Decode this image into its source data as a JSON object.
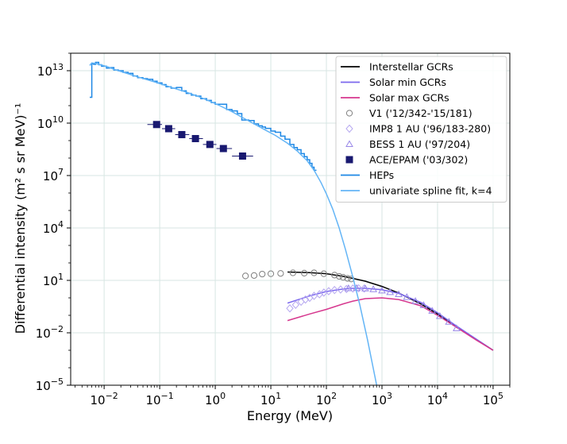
{
  "chart_data": {
    "type": "line",
    "title": "",
    "xlabel": "Energy (MeV)",
    "ylabel": "Differential intensity (m² s sr MeV)⁻¹",
    "x_scale": "log",
    "y_scale": "log",
    "xlim": [
      0.0025,
      200000
    ],
    "ylim": [
      1e-05,
      100000000000000.0
    ],
    "grid": true,
    "legend_position": "top-right",
    "x_ticks": [
      {
        "value": 0.01,
        "base": "10",
        "exp": "−2"
      },
      {
        "value": 0.1,
        "base": "10",
        "exp": "−1"
      },
      {
        "value": 1,
        "base": "10",
        "exp": "0"
      },
      {
        "value": 10,
        "base": "10",
        "exp": "1"
      },
      {
        "value": 100,
        "base": "10",
        "exp": "2"
      },
      {
        "value": 1000,
        "base": "10",
        "exp": "3"
      },
      {
        "value": 10000,
        "base": "10",
        "exp": "4"
      },
      {
        "value": 100000,
        "base": "10",
        "exp": "5"
      }
    ],
    "y_ticks": [
      {
        "value": 1e-05,
        "base": "10",
        "exp": "−5"
      },
      {
        "value": 0.01,
        "base": "10",
        "exp": "−2"
      },
      {
        "value": 10,
        "base": "10",
        "exp": "1"
      },
      {
        "value": 10000.0,
        "base": "10",
        "exp": "4"
      },
      {
        "value": 10000000.0,
        "base": "10",
        "exp": "7"
      },
      {
        "value": 10000000000.0,
        "base": "10",
        "exp": "10"
      },
      {
        "value": 10000000000000.0,
        "base": "10",
        "exp": "13"
      }
    ],
    "series": [
      {
        "name": "Interstellar GCRs",
        "kind": "line",
        "color": "#000000",
        "x": [
          20,
          50,
          100,
          200,
          300,
          500,
          1000,
          2000,
          5000,
          10000,
          20000,
          50000,
          100000
        ],
        "y": [
          30,
          28,
          24,
          17,
          13,
          9,
          4.5,
          1.9,
          0.45,
          0.12,
          0.028,
          0.0042,
          0.001
        ]
      },
      {
        "name": "Solar min GCRs",
        "kind": "line",
        "color": "#7b68ee",
        "x": [
          20,
          50,
          100,
          200,
          300,
          500,
          1000,
          2000,
          5000,
          10000,
          20000,
          50000,
          100000
        ],
        "y": [
          0.5,
          1.3,
          2.3,
          3.2,
          3.5,
          3.5,
          2.9,
          1.8,
          0.55,
          0.14,
          0.03,
          0.0043,
          0.001
        ]
      },
      {
        "name": "Solar max GCRs",
        "kind": "line",
        "color": "#d6378e",
        "x": [
          20,
          50,
          100,
          200,
          300,
          500,
          1000,
          2000,
          5000,
          10000,
          20000,
          50000,
          100000
        ],
        "y": [
          0.05,
          0.12,
          0.22,
          0.45,
          0.65,
          0.9,
          1.0,
          0.8,
          0.35,
          0.1,
          0.025,
          0.0038,
          0.001
        ]
      },
      {
        "name": "V1 ('12/342-'15/181)",
        "kind": "marker",
        "marker": "circle-open",
        "color": "#7f7f7f",
        "x": [
          3.5,
          5,
          7,
          10,
          15,
          25,
          40,
          60,
          90,
          140,
          170,
          200,
          240,
          280
        ],
        "y": [
          18,
          19,
          23,
          24,
          25,
          27,
          26,
          27,
          24,
          20,
          17,
          15,
          13,
          12
        ]
      },
      {
        "name": "IMP8 1 AU ('96/183-280)",
        "kind": "marker",
        "marker": "diamond-open",
        "color": "#b6a8f0",
        "x": [
          22,
          28,
          35,
          42,
          50,
          60,
          75,
          90,
          110,
          140,
          180,
          230,
          300,
          380,
          480
        ],
        "y": [
          0.25,
          0.4,
          0.6,
          0.8,
          1.0,
          1.3,
          1.6,
          2.0,
          2.4,
          2.8,
          3.0,
          3.2,
          3.4,
          3.5,
          3.4
        ]
      },
      {
        "name": "BESS 1 AU ('97/204)",
        "kind": "marker",
        "marker": "triangle-open",
        "color": "#9988e8",
        "x": [
          250,
          350,
          500,
          700,
          1000,
          1400,
          2000,
          2800,
          4000,
          5600,
          8000,
          11000,
          16000,
          22000
        ],
        "y": [
          3.5,
          3.6,
          3.4,
          3.1,
          2.6,
          2.1,
          1.6,
          1.1,
          0.65,
          0.38,
          0.18,
          0.09,
          0.042,
          0.018
        ]
      },
      {
        "name": "ACE/EPAM ('03/302)",
        "kind": "marker",
        "marker": "square-filled",
        "color": "#191970",
        "x": [
          0.088,
          0.145,
          0.25,
          0.44,
          0.8,
          1.4,
          3.1
        ],
        "y": [
          8300000000.0,
          4800000000.0,
          2200000000.0,
          1300000000.0,
          600000000.0,
          350000000.0,
          130000000.0
        ],
        "x_err_low": [
          0.06,
          0.11,
          0.19,
          0.34,
          0.6,
          1.05,
          2.0
        ],
        "x_err_high": [
          0.11,
          0.19,
          0.34,
          0.6,
          1.05,
          2.0,
          4.8
        ]
      },
      {
        "name": "HEPs",
        "kind": "step",
        "color": "#1e88e5",
        "x": [
          0.0055,
          0.006,
          0.0065,
          0.007,
          0.008,
          0.009,
          0.011,
          0.013,
          0.015,
          0.018,
          0.022,
          0.027,
          0.033,
          0.04,
          0.05,
          0.06,
          0.075,
          0.09,
          0.11,
          0.13,
          0.16,
          0.2,
          0.25,
          0.3,
          0.37,
          0.45,
          0.55,
          0.7,
          0.85,
          1.0,
          1.3,
          1.6,
          2.0,
          2.5,
          3.0,
          4.0,
          5.0,
          6.0,
          7.0,
          8.0,
          10,
          12,
          15,
          18,
          22,
          26,
          30,
          35,
          40,
          45,
          50,
          55,
          60
        ],
        "y": [
          300000000000.0,
          25000000000000.0,
          23000000000000.0,
          30000000000000.0,
          22000000000000.0,
          18000000000000.0,
          14000000000000.0,
          15000000000000.0,
          11000000000000.0,
          10000000000000.0,
          8000000000000.0,
          7000000000000.0,
          5000000000000.0,
          4000000000000.0,
          3500000000000.0,
          3200000000000.0,
          2500000000000.0,
          2000000000000.0,
          1600000000000.0,
          1200000000000.0,
          1000000000000.0,
          1100000000000.0,
          700000000000.0,
          500000000000.0,
          400000000000.0,
          350000000000.0,
          250000000000.0,
          200000000000.0,
          150000000000.0,
          120000000000.0,
          120000000000.0,
          60000000000.0,
          50000000000.0,
          35000000000.0,
          15000000000.0,
          14000000000.0,
          9000000000.0,
          7000000000.0,
          6000000000.0,
          5000000000.0,
          3500000000.0,
          3000000000.0,
          1800000000.0,
          1200000000.0,
          600000000.0,
          400000000.0,
          300000000.0,
          180000000.0,
          120000000.0,
          80000000.0,
          50000000.0,
          30000000.0,
          20000000.0
        ]
      },
      {
        "name": "univariate spline fit, k=4",
        "kind": "line",
        "color": "#64b5f6",
        "x": [
          0.0055,
          0.006,
          0.007,
          0.009,
          0.012,
          0.015,
          0.02,
          0.03,
          0.05,
          0.08,
          0.12,
          0.2,
          0.3,
          0.5,
          0.8,
          1.2,
          2,
          3,
          5,
          8,
          12,
          20,
          30,
          45,
          60,
          80,
          100,
          130,
          170,
          220,
          300,
          400,
          550,
          750,
          1000
        ],
        "y": [
          20000000000000.0,
          28000000000000.0,
          26000000000000.0,
          21000000000000.0,
          16000000000000.0,
          12000000000000.0,
          9000000000000.0,
          6000000000000.0,
          3600000000000.0,
          2300000000000.0,
          1500000000000.0,
          900000000000.0,
          600000000000.0,
          330000000000.0,
          180000000000.0,
          100000000000.0,
          45000000000.0,
          22000000000.0,
          9000000000.0,
          4000000000.0,
          2000000000.0,
          700000000.0,
          250000000.0,
          70000000.0,
          20000000.0,
          4000000.0,
          900000.0,
          120000.0,
          10000.0,
          600.0,
          15,
          0.4,
          0.004,
          3e-05,
          3e-07
        ]
      }
    ]
  }
}
